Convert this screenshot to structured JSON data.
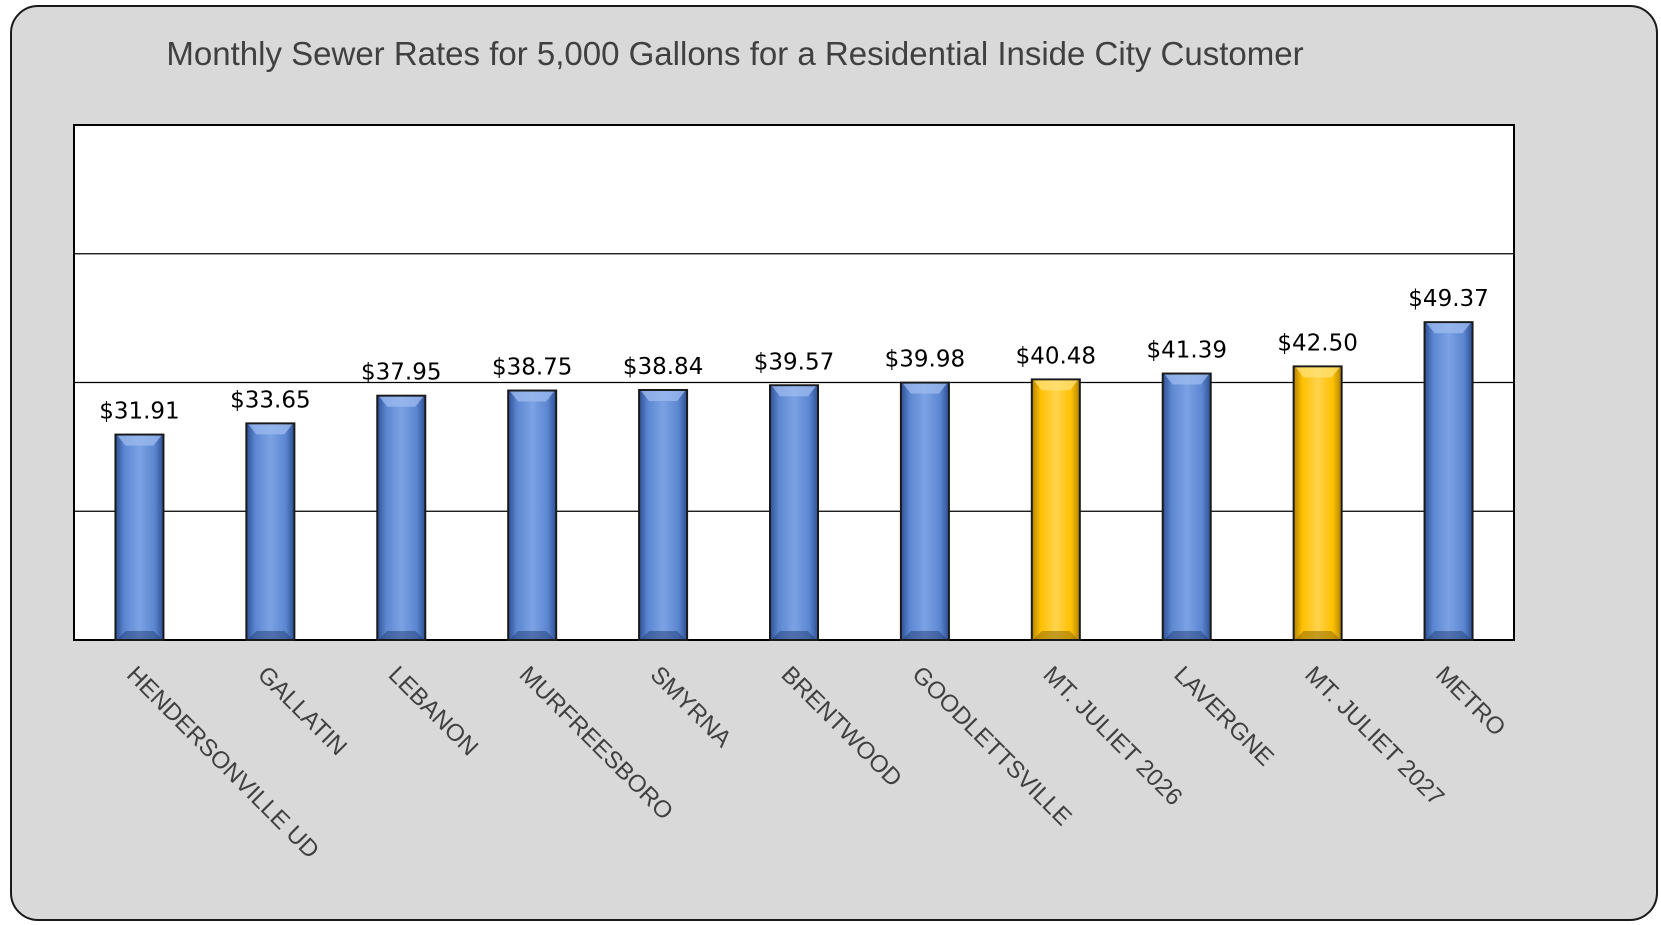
{
  "chart_data": {
    "type": "bar",
    "title": "Monthly Sewer Rates for 5,000 Gallons for a Residential Inside City Customer",
    "xlabel": "",
    "ylabel": "",
    "categories": [
      "HENDERSONVILLE UD",
      "GALLATIN",
      "LEBANON",
      "MURFREESBORO",
      "SMYRNA",
      "BRENTWOOD",
      "GOODLETTSVILLE",
      "MT. JULIET 2026",
      "LAVERGNE",
      "MT. JULIET 2027",
      "METRO"
    ],
    "values": [
      31.91,
      33.65,
      37.95,
      38.75,
      38.84,
      39.57,
      39.98,
      40.48,
      41.39,
      42.5,
      49.37
    ],
    "value_labels": [
      "$31.91",
      "$33.65",
      "$37.95",
      "$38.75",
      "$38.84",
      "$39.57",
      "$39.98",
      "$40.48",
      "$41.39",
      "$42.50",
      "$49.37"
    ],
    "highlighted": [
      false,
      false,
      false,
      false,
      false,
      false,
      false,
      true,
      false,
      true,
      false
    ],
    "ylim": [
      0,
      80
    ],
    "gridlines": [
      20,
      40,
      60
    ],
    "grid": true,
    "legend": "none",
    "colors": {
      "bar": "#5b86d0",
      "bar_highlight": "#ffc000",
      "background": "#d9d9d9",
      "plot_area": "#ffffff"
    }
  }
}
